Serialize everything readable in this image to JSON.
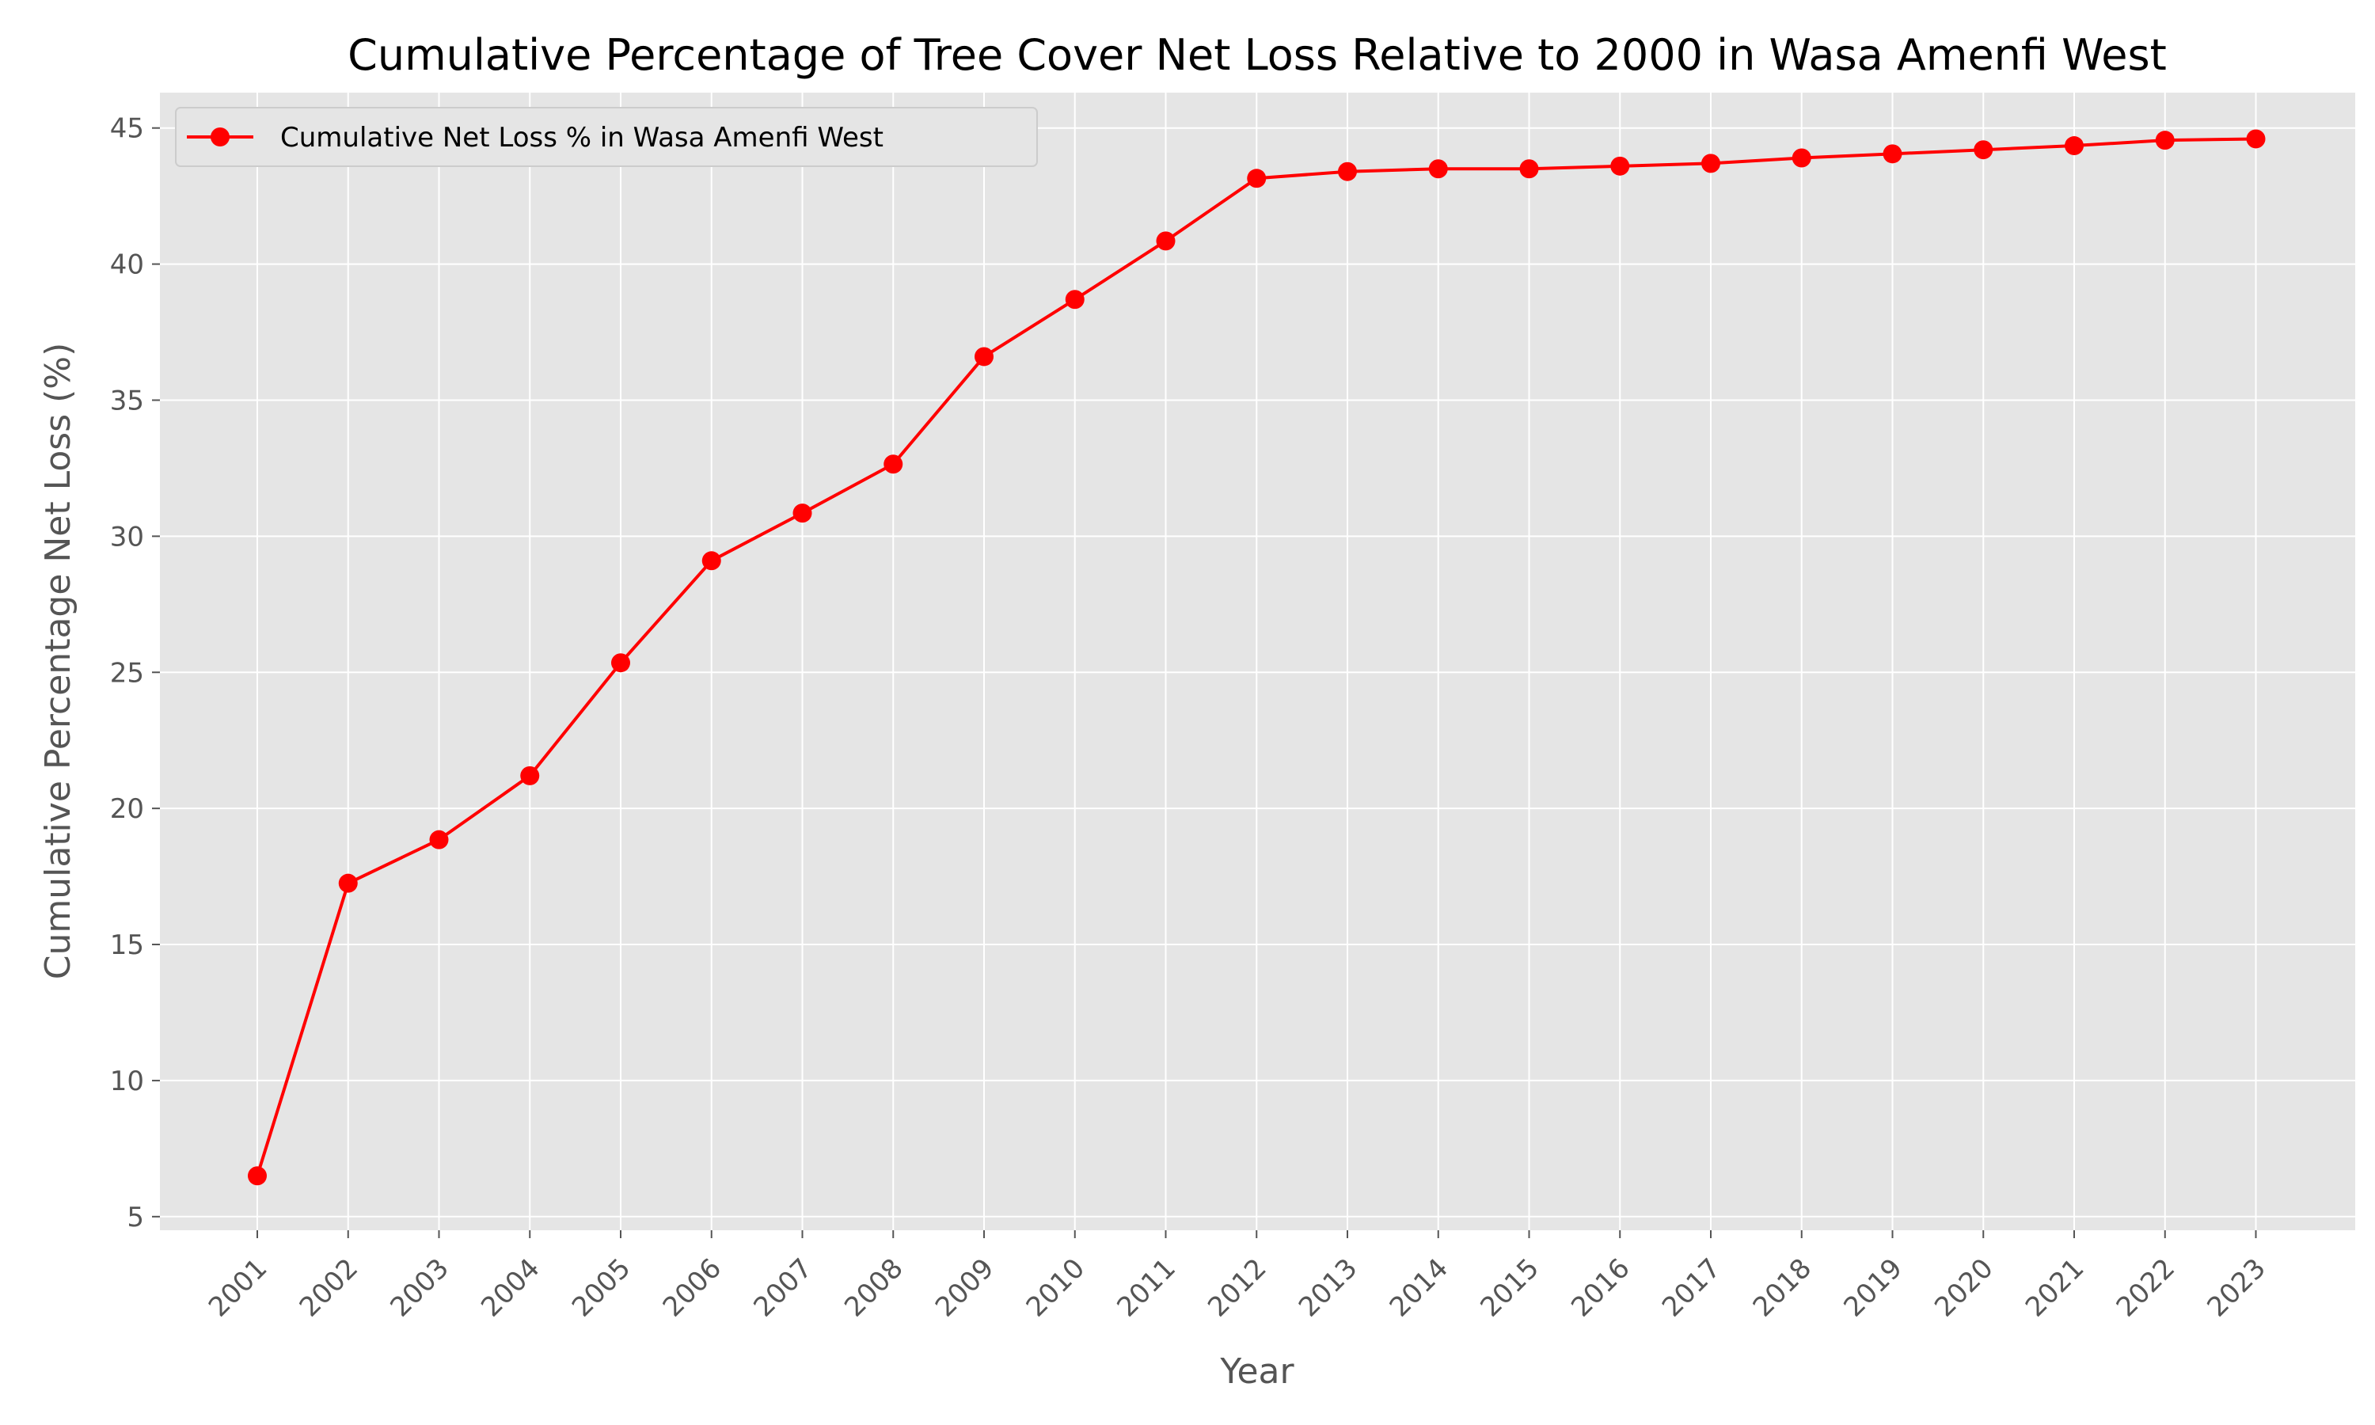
{
  "chart_data": {
    "type": "line",
    "title": "Cumulative Percentage of Tree Cover Net Loss Relative to 2000 in Wasa Amenfi West",
    "xlabel": "Year",
    "ylabel": "Cumulative Percentage Net Loss (%)",
    "ylim": [
      4.5,
      46.3
    ],
    "yticks": [
      5,
      10,
      15,
      20,
      25,
      30,
      35,
      40,
      45
    ],
    "grid": true,
    "legend_position": "top-left",
    "categories": [
      "2001",
      "2002",
      "2003",
      "2004",
      "2005",
      "2006",
      "2007",
      "2008",
      "2009",
      "2010",
      "2011",
      "2012",
      "2013",
      "2014",
      "2015",
      "2016",
      "2017",
      "2018",
      "2019",
      "2020",
      "2021",
      "2022",
      "2023"
    ],
    "series": [
      {
        "name": "Cumulative Net Loss % in Wasa Amenfi West",
        "color": "#ff0000",
        "values": [
          6.5,
          17.25,
          18.85,
          21.2,
          25.35,
          29.1,
          30.85,
          32.65,
          36.6,
          38.7,
          40.85,
          43.15,
          43.4,
          43.5,
          43.5,
          43.6,
          43.7,
          43.9,
          44.05,
          44.2,
          44.35,
          44.55,
          44.6
        ]
      }
    ],
    "colors": {
      "plot_background": "#e5e5e5",
      "grid": "#ffffff"
    }
  }
}
